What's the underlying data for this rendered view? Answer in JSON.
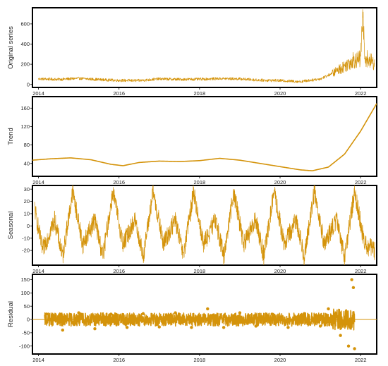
{
  "colors": {
    "series": "#D4930A"
  },
  "chart_data": [
    {
      "type": "line",
      "ylabel": "Original series",
      "ylim": [
        -30,
        760
      ],
      "yticks": [
        0,
        200,
        400,
        600
      ],
      "xlim": [
        2013.85,
        2022.4
      ],
      "xticks": [
        2014,
        2016,
        2018,
        2020,
        2022
      ],
      "x": [
        2014.0,
        2014.5,
        2015.0,
        2015.5,
        2016.0,
        2016.5,
        2017.0,
        2017.5,
        2018.0,
        2018.5,
        2019.0,
        2019.5,
        2020.0,
        2020.5,
        2021.0,
        2021.3,
        2021.6,
        2021.8,
        2022.0,
        2022.05,
        2022.1,
        2022.2,
        2022.35
      ],
      "values": [
        55,
        50,
        60,
        48,
        40,
        38,
        55,
        50,
        52,
        58,
        55,
        42,
        38,
        28,
        55,
        110,
        180,
        240,
        250,
        700,
        280,
        240,
        210
      ]
    },
    {
      "type": "line",
      "ylabel": "Trend",
      "ylim": [
        12,
        185
      ],
      "yticks": [
        40,
        80,
        120,
        160
      ],
      "xlim": [
        2013.85,
        2022.4
      ],
      "xticks": [
        2014,
        2016,
        2018,
        2020,
        2022
      ],
      "x": [
        2013.85,
        2014.3,
        2014.8,
        2015.3,
        2015.8,
        2016.1,
        2016.5,
        2017.0,
        2017.5,
        2018.0,
        2018.5,
        2019.0,
        2019.5,
        2020.0,
        2020.5,
        2020.8,
        2021.2,
        2021.6,
        2022.0,
        2022.4
      ],
      "values": [
        47,
        50,
        52,
        48,
        38,
        35,
        42,
        45,
        44,
        46,
        51,
        47,
        40,
        33,
        26,
        24,
        32,
        60,
        110,
        170
      ]
    },
    {
      "type": "line",
      "ylabel": "Seasonal",
      "ylim": [
        -32,
        33
      ],
      "yticks": [
        -20,
        -10,
        0,
        10,
        20,
        30
      ],
      "xlim": [
        2013.85,
        2022.4
      ],
      "xticks": [
        2014,
        2016,
        2018,
        2020,
        2022
      ],
      "x": [
        2013.9,
        2014.1,
        2014.4,
        2014.6,
        2014.85,
        2015.1,
        2015.4,
        2015.6,
        2015.85,
        2016.1,
        2016.4,
        2016.6,
        2016.85,
        2017.1,
        2017.4,
        2017.6,
        2017.85,
        2018.1,
        2018.4,
        2018.6,
        2018.85,
        2019.1,
        2019.4,
        2019.6,
        2019.85,
        2020.1,
        2020.4,
        2020.6,
        2020.85,
        2021.1,
        2021.4,
        2021.6,
        2021.85,
        2022.1,
        2022.35
      ],
      "values": [
        15,
        -20,
        5,
        -25,
        28,
        -15,
        5,
        -25,
        28,
        -15,
        5,
        -25,
        28,
        -15,
        5,
        -25,
        28,
        -15,
        5,
        -25,
        28,
        -15,
        5,
        -25,
        28,
        -15,
        5,
        -25,
        28,
        -15,
        5,
        -25,
        28,
        -15,
        -20
      ]
    },
    {
      "type": "scatter",
      "ylabel": "Residual",
      "ylim": [
        -130,
        170
      ],
      "yticks": [
        -100,
        -50,
        0,
        50,
        100,
        150
      ],
      "xlim": [
        2013.85,
        2022.4
      ],
      "xticks": [
        2014,
        2016,
        2018,
        2020,
        2022
      ],
      "x": [
        2014.2,
        2014.6,
        2015.0,
        2015.4,
        2015.8,
        2016.2,
        2016.6,
        2017.0,
        2017.4,
        2017.8,
        2018.2,
        2018.6,
        2019.0,
        2019.4,
        2019.8,
        2020.2,
        2020.6,
        2021.0,
        2021.2,
        2021.5,
        2021.7,
        2021.78,
        2021.82,
        2021.85
      ],
      "values": [
        20,
        -40,
        25,
        -35,
        20,
        -30,
        22,
        -28,
        25,
        -30,
        40,
        -30,
        25,
        -25,
        20,
        -30,
        22,
        -25,
        40,
        -60,
        -100,
        150,
        120,
        -110
      ]
    }
  ]
}
